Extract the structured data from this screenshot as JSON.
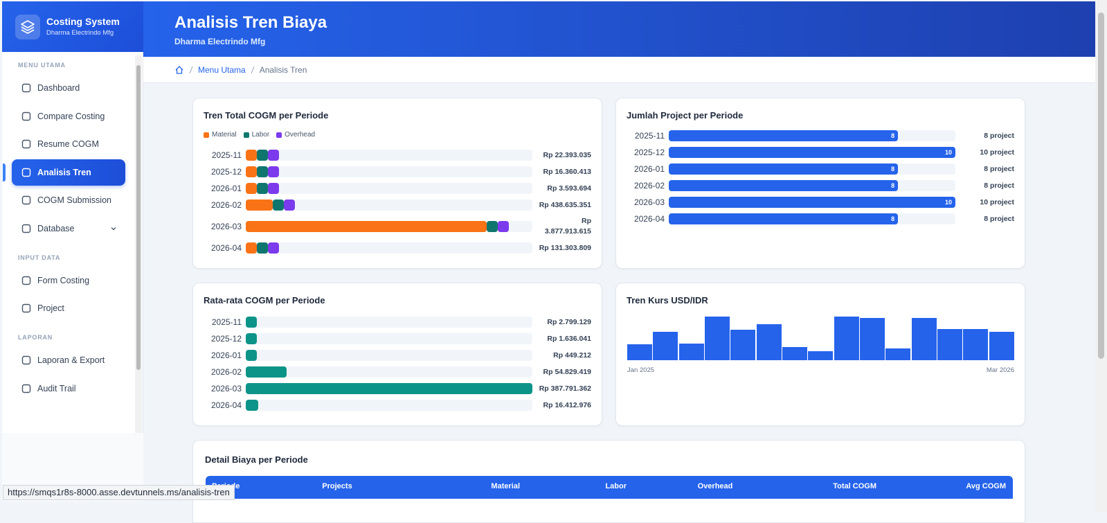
{
  "sidebar": {
    "brand": "Costing System",
    "company": "Dharma Electrindo Mfg",
    "sections": [
      {
        "title": "MENU UTAMA",
        "items": [
          {
            "label": "Dashboard"
          },
          {
            "label": "Compare Costing"
          },
          {
            "label": "Resume COGM"
          },
          {
            "label": "Analisis Tren",
            "active": true
          },
          {
            "label": "COGM Submission"
          },
          {
            "label": "Database",
            "expandable": true
          }
        ]
      },
      {
        "title": "INPUT DATA",
        "items": [
          {
            "label": "Form Costing"
          },
          {
            "label": "Project"
          }
        ]
      },
      {
        "title": "LAPORAN",
        "items": [
          {
            "label": "Laporan & Export"
          },
          {
            "label": "Audit Trail"
          }
        ]
      }
    ]
  },
  "header": {
    "title": "Analisis Tren Biaya",
    "subtitle": "Dharma Electrindo Mfg"
  },
  "breadcrumb": {
    "items": [
      "Menu Utama",
      "Analisis Tren"
    ]
  },
  "cogm_trend": {
    "type": "stacked-hbar",
    "title": "Tren Total COGM per Periode",
    "categories": [
      "2025-11",
      "2025-12",
      "2026-01",
      "2026-02",
      "2026-03",
      "2026-04"
    ],
    "values": [
      22393035,
      16360413,
      3593694,
      438635351,
      3877913615,
      131303809
    ],
    "value_labels": [
      "Rp 22.393.035",
      "Rp 16.360.413",
      "Rp 3.593.694",
      "Rp 438.635.351",
      "Rp 3.877.913.615",
      "Rp 131.303.809"
    ],
    "series": [
      {
        "name": "Material",
        "color": "#f97316",
        "values": [
          21270000,
          15540000,
          3410000,
          416700000,
          3684000000,
          124700000
        ]
      },
      {
        "name": "Labor",
        "color": "#0f766e",
        "values": [
          670000,
          490000,
          110000,
          13160000,
          116300000,
          3940000
        ]
      },
      {
        "name": "Overhead",
        "color": "#7c3aed",
        "values": [
          450000,
          330000,
          72000,
          8770000,
          77560000,
          2630000
        ]
      }
    ]
  },
  "project_count": {
    "type": "hbar",
    "title": "Jumlah Project per Periode",
    "categories": [
      "2025-11",
      "2025-12",
      "2026-01",
      "2026-02",
      "2026-03",
      "2026-04"
    ],
    "values": [
      8,
      10,
      8,
      8,
      10,
      8
    ],
    "value_labels": [
      "8 project",
      "10 project",
      "8 project",
      "8 project",
      "10 project",
      "8 project"
    ],
    "xlim": [
      0,
      10
    ],
    "color": "#2563eb"
  },
  "avg_cogm": {
    "type": "hbar",
    "title": "Rata-rata COGM per Periode",
    "categories": [
      "2025-11",
      "2025-12",
      "2026-01",
      "2026-02",
      "2026-03",
      "2026-04"
    ],
    "values": [
      2799129,
      1636041,
      449212,
      54829419,
      387791362,
      16412976
    ],
    "value_labels": [
      "Rp 2.799.129",
      "Rp 1.636.041",
      "Rp 449.212",
      "Rp 54.829.419",
      "Rp 387.791.362",
      "Rp 16.412.976"
    ],
    "color": "#0d9488"
  },
  "kurs_trend": {
    "type": "bar",
    "title": "Tren Kurs USD/IDR",
    "categories": [
      "Jan 2025",
      null,
      null,
      null,
      null,
      null,
      null,
      null,
      null,
      null,
      null,
      null,
      null,
      null,
      "Mar 2026"
    ],
    "values": [
      16150,
      16430,
      16170,
      16770,
      16480,
      16600,
      16090,
      16000,
      16770,
      16740,
      16060,
      16740,
      16490,
      16490,
      16430
    ],
    "ylim": [
      15800,
      16800
    ],
    "color": "#2563eb"
  },
  "detail_table": {
    "title": "Detail Biaya per Periode",
    "columns": [
      "Periode",
      "Projects",
      "Material",
      "Labor",
      "Overhead",
      "Total COGM",
      "Avg COGM"
    ]
  },
  "status_bar": "https://smqs1r8s-8000.asse.devtunnels.ms/analisis-tren"
}
